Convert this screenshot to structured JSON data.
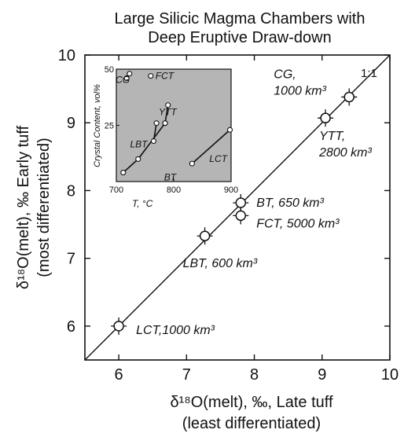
{
  "chart_data": [
    {
      "type": "scatter",
      "title_lines": [
        "Large Silicic Magma Chambers with",
        "Deep Eruptive Draw-down"
      ],
      "xlabel_lines": [
        "δ¹⁸O(melt), ‰, Late tuff",
        "(least differentiated)"
      ],
      "ylabel_lines": [
        "δ¹⁸O(melt), ‰ Early tuff",
        "(most differentiated)"
      ],
      "xlim": [
        5.5,
        10
      ],
      "ylim": [
        5.5,
        10
      ],
      "x_ticks": [
        "6",
        "7",
        "8",
        "9",
        "10"
      ],
      "y_ticks": [
        "6",
        "7",
        "8",
        "9",
        "10"
      ],
      "reference_line_label": "1:1",
      "points": [
        {
          "x": 6.0,
          "y": 6.0,
          "label": "LCT,1000 km³"
        },
        {
          "x": 7.27,
          "y": 7.33,
          "label": "LBT, 600 km³"
        },
        {
          "x": 7.8,
          "y": 7.63,
          "label": "FCT, 5000 km³"
        },
        {
          "x": 7.8,
          "y": 7.82,
          "label": "BT, 650 km³"
        },
        {
          "x": 9.05,
          "y": 9.07,
          "label_lines": [
            "YTT,",
            "2800 km³"
          ]
        },
        {
          "x": 9.4,
          "y": 9.38,
          "label_lines": [
            "CG,",
            "1000 km³"
          ]
        }
      ]
    },
    {
      "type": "line",
      "role": "inset",
      "xlabel": "T, °C",
      "ylabel": "Crystal Content, vol%",
      "xlim": [
        700,
        900
      ],
      "ylim": [
        0,
        50
      ],
      "x_ticks": [
        "700",
        "800",
        "900"
      ],
      "y_ticks": [
        "25",
        "50"
      ],
      "background": "#b5b5b5",
      "series": [
        {
          "label": "CG",
          "points": [
            [
              718,
              46
            ],
            [
              723,
              48
            ]
          ]
        },
        {
          "label": "FCT",
          "points": [
            [
              760,
              47
            ]
          ]
        },
        {
          "label": "YTT",
          "points": [
            [
              785,
              26
            ],
            [
              790,
              34
            ]
          ]
        },
        {
          "label": "LBT",
          "points": [
            [
              765,
              18
            ],
            [
              770,
              26
            ]
          ]
        },
        {
          "label": "BT",
          "points": [
            [
              712,
              4
            ],
            [
              738,
              10
            ],
            [
              785,
              26
            ]
          ]
        },
        {
          "label": "LCT",
          "points": [
            [
              832,
              8
            ],
            [
              898,
              23
            ]
          ]
        }
      ]
    }
  ]
}
